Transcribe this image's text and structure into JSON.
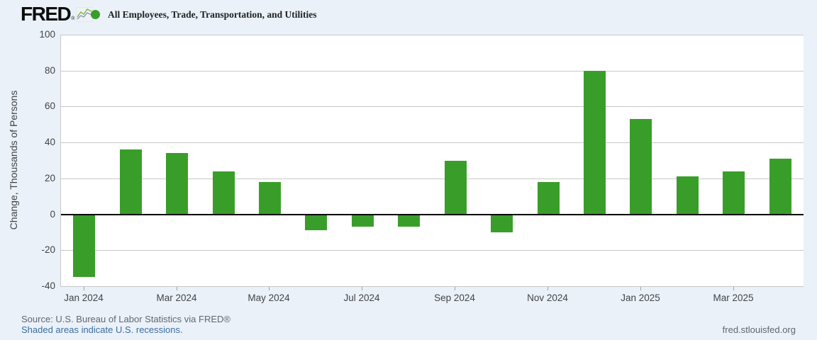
{
  "header": {
    "logo": "FRED",
    "registered_mark": "®",
    "series_legend": {
      "marker_color": "#399e29",
      "label": "All Employees, Trade, Transportation, and Utilities"
    }
  },
  "chart_data": {
    "type": "bar",
    "title": "All Employees, Trade, Transportation, and Utilities",
    "ylabel": "Change, Thousands of Persons",
    "xlabel": "",
    "ylim": [
      -40,
      100
    ],
    "yticks": [
      100,
      80,
      60,
      40,
      20,
      0,
      -20,
      -40
    ],
    "categories": [
      "Jan 2024",
      "Feb 2024",
      "Mar 2024",
      "Apr 2024",
      "May 2024",
      "Jun 2024",
      "Jul 2024",
      "Aug 2024",
      "Sep 2024",
      "Oct 2024",
      "Nov 2024",
      "Dec 2024",
      "Jan 2025",
      "Feb 2025",
      "Mar 2025",
      "Apr 2025"
    ],
    "values": [
      -35,
      36,
      34,
      24,
      18,
      -9,
      -7,
      -7,
      30,
      -10,
      18,
      80,
      53,
      21,
      24,
      31
    ],
    "xtick_every": 2,
    "grid": true,
    "zero_line": true,
    "bar_color": "#399e29",
    "legend_position": "top-left"
  },
  "footer": {
    "source_line": "Source: U.S. Bureau of Labor Statistics via FRED®",
    "recessions_link": "Shaded areas indicate U.S. recessions.",
    "site_link": "fred.stlouisfed.org"
  },
  "colors": {
    "page_bg": "#eaf1f9",
    "plot_bg": "#ffffff",
    "gridline": "#c8c8c8",
    "axis_text": "#444444",
    "source_text": "#62676d",
    "link_text": "#3c6e9e",
    "bar": "#399e29"
  }
}
